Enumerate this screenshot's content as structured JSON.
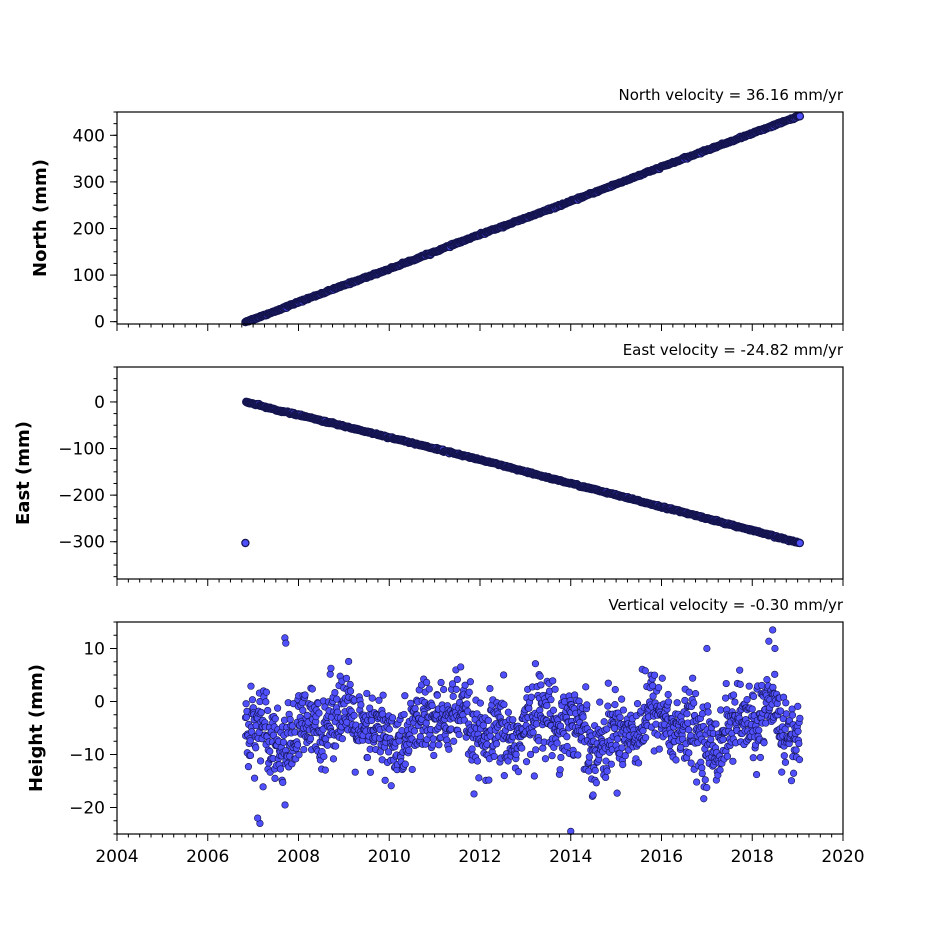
{
  "colors": {
    "marker_fill": "#4f4ffb",
    "marker_edge": "#141450",
    "axes": "#000000",
    "background": "#ffffff"
  },
  "chart_data": [
    {
      "type": "scatter",
      "title": "North velocity = 36.16 mm/yr",
      "xlabel": "",
      "ylabel": "North (mm)",
      "xlim": [
        2004,
        2020
      ],
      "ylim": [
        -5,
        450
      ],
      "x_ticks": [
        2004,
        2006,
        2008,
        2010,
        2012,
        2014,
        2016,
        2018,
        2020
      ],
      "y_ticks": [
        0,
        100,
        200,
        300,
        400
      ],
      "y_tick_labels": [
        "0",
        "100",
        "200",
        "300",
        "400"
      ],
      "x_tick_labels_visible": false,
      "series": [
        {
          "x_start": 2006.83,
          "x_end": 2019.05,
          "points": [
            [
              2006.83,
              0
            ],
            [
              2007.0,
              5
            ],
            [
              2007.5,
              23
            ],
            [
              2008.0,
              42
            ],
            [
              2009.0,
              78
            ],
            [
              2010.0,
              113
            ],
            [
              2011.0,
              150
            ],
            [
              2012.0,
              187
            ],
            [
              2013.0,
              222
            ],
            [
              2014.0,
              258
            ],
            [
              2015.0,
              295
            ],
            [
              2016.0,
              332
            ],
            [
              2017.0,
              368
            ],
            [
              2018.0,
              404
            ],
            [
              2019.05,
              442
            ]
          ]
        }
      ],
      "grid": false
    },
    {
      "type": "scatter",
      "title": "East velocity = -24.82 mm/yr",
      "xlabel": "",
      "ylabel": "East (mm)",
      "xlim": [
        2004,
        2020
      ],
      "ylim": [
        -380,
        75
      ],
      "x_ticks": [
        2004,
        2006,
        2008,
        2010,
        2012,
        2014,
        2016,
        2018,
        2020
      ],
      "y_ticks": [
        0,
        -100,
        -200,
        -300
      ],
      "y_tick_labels": [
        "0",
        "−100",
        "−200",
        "−300"
      ],
      "x_tick_labels_visible": false,
      "series": [
        {
          "x_start": 2006.83,
          "x_end": 2019.05,
          "points": [
            [
              2006.83,
              0
            ],
            [
              2007.5,
              -17
            ],
            [
              2008.0,
              -28
            ],
            [
              2009.0,
              -52
            ],
            [
              2010.0,
              -76
            ],
            [
              2011.0,
              -100
            ],
            [
              2012.0,
              -124
            ],
            [
              2013.0,
              -150
            ],
            [
              2014.0,
              -175
            ],
            [
              2015.0,
              -200
            ],
            [
              2016.0,
              -225
            ],
            [
              2017.0,
              -250
            ],
            [
              2018.0,
              -276
            ],
            [
              2019.05,
              -303
            ]
          ]
        }
      ],
      "grid": false
    },
    {
      "type": "scatter",
      "title": "Vertical velocity = -0.30 mm/yr",
      "xlabel": "",
      "ylabel": "Height (mm)",
      "xlim": [
        2004,
        2020
      ],
      "ylim": [
        -25,
        15
      ],
      "x_ticks": [
        2004,
        2006,
        2008,
        2010,
        2012,
        2014,
        2016,
        2018,
        2020
      ],
      "x_tick_labels": [
        "2004",
        "2006",
        "2008",
        "2010",
        "2012",
        "2014",
        "2016",
        "2018",
        "2020"
      ],
      "y_ticks": [
        10,
        0,
        -10,
        -20
      ],
      "y_tick_labels": [
        "10",
        "0",
        "−10",
        "−20"
      ],
      "x_tick_labels_visible": true,
      "series": [
        {
          "x_start": 2006.83,
          "x_end": 2019.05,
          "mean": -5,
          "spread": 4.5,
          "min": -24.5,
          "max": 13.5,
          "outliers": [
            [
              2007.15,
              -23
            ],
            [
              2007.1,
              -22
            ],
            [
              2014.0,
              -24.5
            ],
            [
              2018.45,
              13.5
            ],
            [
              2007.7,
              12
            ],
            [
              2007.72,
              11
            ],
            [
              2017.0,
              10
            ],
            [
              2018.5,
              10
            ]
          ]
        }
      ],
      "grid": false
    }
  ]
}
